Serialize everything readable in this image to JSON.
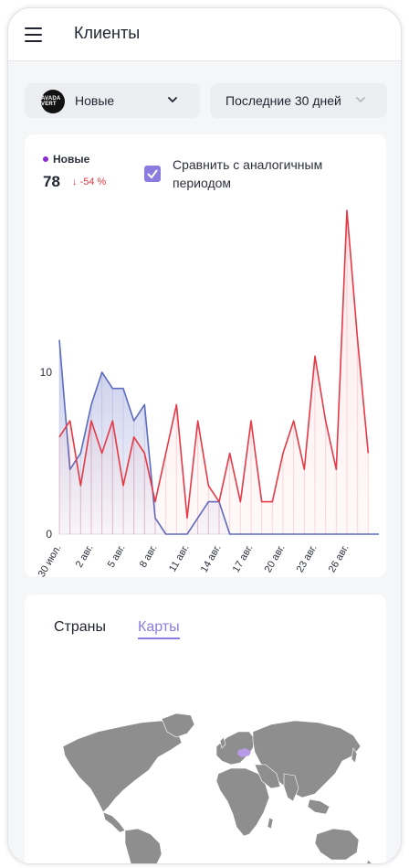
{
  "header": {
    "title": "Клиенты",
    "menu_icon": "hamburger-menu-icon"
  },
  "filters": {
    "segment": {
      "logo_text": "AVADA VERT",
      "label": "Новые"
    },
    "period": {
      "label": "Последние 30 дней"
    }
  },
  "chart_card": {
    "legend_label": "Новые",
    "total": "78",
    "delta": "-54 %",
    "compare_label": "Сравнить с аналогичным периодом",
    "compare_checked": true
  },
  "chart_data": {
    "type": "line",
    "title": "",
    "xlabel": "",
    "ylabel": "",
    "ylim": [
      0,
      20
    ],
    "yticks": [
      "0",
      "10"
    ],
    "xticks": [
      "30 июл.",
      "2 авг.",
      "5 авг.",
      "8 авг.",
      "11 авг.",
      "14 авг.",
      "17 авг.",
      "20 авг.",
      "23 авг.",
      "26 авг."
    ],
    "colors": {
      "current": "#5c6bc0",
      "previous": "#e53946"
    },
    "series": [
      {
        "name": "Новые",
        "values": [
          12,
          4,
          5,
          8,
          10,
          9,
          9,
          7,
          8,
          1,
          0,
          0,
          0,
          1,
          2,
          2,
          0,
          0,
          0,
          0,
          0,
          0,
          0,
          0,
          0,
          0,
          0,
          0,
          0,
          0,
          0
        ]
      },
      {
        "values": [
          6,
          7,
          3,
          7,
          5,
          7,
          3,
          6,
          5,
          2,
          5,
          8,
          1,
          7,
          3,
          2,
          5,
          2,
          7,
          2,
          2,
          5,
          7,
          4,
          11,
          7,
          4,
          20,
          12,
          5
        ]
      }
    ]
  },
  "map_card": {
    "tabs": [
      {
        "label": "Страны"
      },
      {
        "label": "Карты"
      }
    ],
    "active_tab": "Карты",
    "land_color": "#8e8e8e",
    "highlight_color": "#b89be6"
  }
}
